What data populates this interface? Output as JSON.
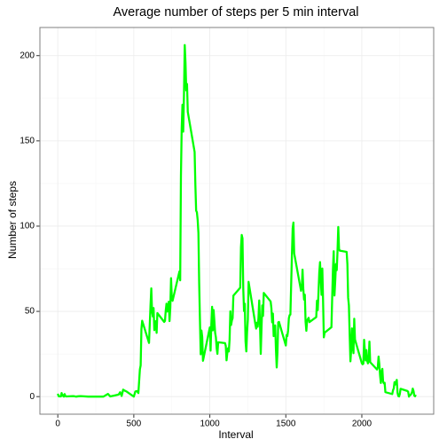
{
  "chart_data": {
    "type": "line",
    "title": "Average number of steps per 5 min interval",
    "x_label": "Interval",
    "y_label": "Number of steps",
    "xlim": [
      -117.75,
      2472.75
    ],
    "xticks": [
      0,
      500,
      1000,
      1500,
      2000
    ],
    "ylim": [
      -10.3,
      216.5
    ],
    "yticks": [
      0,
      50,
      100,
      150,
      200
    ],
    "grid": true,
    "series": [
      {
        "name": "steps",
        "color": "#00ff00",
        "x": [
          0,
          5,
          10,
          15,
          20,
          25,
          30,
          35,
          40,
          45,
          50,
          55,
          100,
          110,
          120,
          135,
          150,
          200,
          230,
          300,
          330,
          345,
          400,
          410,
          420,
          430,
          440,
          450,
          500,
          510,
          520,
          530,
          540,
          545,
          550,
          555,
          600,
          610,
          615,
          620,
          625,
          630,
          635,
          640,
          645,
          650,
          655,
          700,
          705,
          710,
          715,
          720,
          725,
          730,
          735,
          740,
          745,
          750,
          755,
          800,
          805,
          810,
          815,
          820,
          825,
          830,
          835,
          840,
          845,
          850,
          855,
          900,
          905,
          910,
          915,
          920,
          925,
          930,
          935,
          940,
          945,
          950,
          955,
          1000,
          1005,
          1010,
          1015,
          1020,
          1025,
          1030,
          1035,
          1040,
          1045,
          1050,
          1055,
          1100,
          1105,
          1110,
          1115,
          1120,
          1125,
          1130,
          1135,
          1140,
          1145,
          1150,
          1155,
          1200,
          1205,
          1210,
          1215,
          1220,
          1225,
          1230,
          1235,
          1240,
          1245,
          1250,
          1255,
          1300,
          1305,
          1310,
          1315,
          1320,
          1325,
          1330,
          1335,
          1340,
          1345,
          1350,
          1355,
          1400,
          1405,
          1410,
          1415,
          1420,
          1425,
          1430,
          1435,
          1440,
          1445,
          1450,
          1455,
          1500,
          1505,
          1510,
          1515,
          1520,
          1525,
          1530,
          1535,
          1540,
          1545,
          1550,
          1555,
          1600,
          1605,
          1610,
          1615,
          1620,
          1625,
          1630,
          1635,
          1640,
          1645,
          1650,
          1655,
          1700,
          1705,
          1710,
          1715,
          1720,
          1725,
          1730,
          1735,
          1740,
          1745,
          1750,
          1755,
          1800,
          1805,
          1810,
          1815,
          1820,
          1825,
          1830,
          1835,
          1840,
          1845,
          1850,
          1855,
          1900,
          1905,
          1910,
          1915,
          1920,
          1925,
          1930,
          1935,
          1940,
          1945,
          1950,
          1955,
          2000,
          2005,
          2010,
          2015,
          2020,
          2025,
          2030,
          2035,
          2040,
          2045,
          2050,
          2055,
          2100,
          2105,
          2110,
          2115,
          2120,
          2125,
          2130,
          2135,
          2140,
          2145,
          2150,
          2155,
          2200,
          2205,
          2210,
          2215,
          2220,
          2225,
          2230,
          2235,
          2240,
          2245,
          2250,
          2255,
          2300,
          2305,
          2310,
          2315,
          2320,
          2325,
          2330,
          2335,
          2340,
          2345,
          2350,
          2355
        ],
        "values": [
          1.7,
          0.3,
          0.1,
          0.2,
          0.1,
          2.1,
          0.5,
          0.9,
          0,
          1.5,
          0.3,
          0.1,
          0.3,
          0.2,
          0,
          0.2,
          0.3,
          0,
          0,
          0,
          1.6,
          0.1,
          1.2,
          2.6,
          0.4,
          4.1,
          3.5,
          3.1,
          0,
          3,
          3.3,
          2.1,
          16,
          18.3,
          39.5,
          44.5,
          31.5,
          53.8,
          63.5,
          50,
          47,
          52,
          39,
          44,
          44.2,
          37.4,
          49,
          43.8,
          44.4,
          50.5,
          54.5,
          49.9,
          50.9,
          55.7,
          44.3,
          52.3,
          69.5,
          57.8,
          56.2,
          73.4,
          68.2,
          129.4,
          157.5,
          171.2,
          155.4,
          177.3,
          206.2,
          195.9,
          179.6,
          183.4,
          167,
          143.5,
          124,
          109.1,
          108.1,
          103.7,
          96,
          66.2,
          45.2,
          24.8,
          38.8,
          35,
          21,
          40.6,
          27,
          42.4,
          52.7,
          38.9,
          50.8,
          44.3,
          37.4,
          34.7,
          28.3,
          25.1,
          31.9,
          31.4,
          29.7,
          21.3,
          25.5,
          28.4,
          26.5,
          33.4,
          50,
          42,
          44.6,
          46,
          59.2,
          63.9,
          87.7,
          94.8,
          92.8,
          63.4,
          50.2,
          54.5,
          32.4,
          26.5,
          37.7,
          45.1,
          67.3,
          42.3,
          39.9,
          43.3,
          41,
          46.2,
          56.4,
          42.8,
          25.1,
          40,
          53.5,
          47.3,
          60.8,
          55.8,
          52,
          43.6,
          48.7,
          35.5,
          37.5,
          41.8,
          27.5,
          17.1,
          26.1,
          43.6,
          43.8,
          30,
          36.1,
          35.5,
          38.8,
          46,
          47.8,
          48.1,
          65.3,
          82.9,
          98.7,
          102.1,
          84,
          62.1,
          64.1,
          74.5,
          63.2,
          56.9,
          59.8,
          43.9,
          38.6,
          44.7,
          45.5,
          46.2,
          43.7,
          46.6,
          56.3,
          50.7,
          61.2,
          72.7,
          78.9,
          68.9,
          59.7,
          75.1,
          56.5,
          34.8,
          37.5,
          40.7,
          58,
          74.7,
          85.3,
          59.3,
          67.8,
          77.7,
          74.2,
          85.3,
          99.5,
          86.6,
          85.6,
          84.9,
          77.8,
          58,
          53.4,
          36.3,
          20.7,
          27.4,
          40,
          30.2,
          25.5,
          45.7,
          33.5,
          19.6,
          19,
          19.3,
          33.3,
          26.8,
          21.2,
          27.3,
          21.3,
          19.5,
          21.3,
          32.3,
          20.2,
          15.9,
          17.2,
          23.5,
          19.2,
          12.5,
          8,
          14.7,
          16.3,
          8.7,
          7.8,
          8.1,
          2.6,
          1.5,
          3.7,
          4.8,
          8.5,
          7.1,
          8.7,
          9.8,
          2.2,
          0.3,
          0.1,
          1.6,
          4.6,
          3.3,
          2.8,
          0,
          0.8,
          1,
          1.6,
          2.6,
          4.7,
          3.3,
          0.6,
          0.2,
          1.1
        ]
      }
    ]
  }
}
